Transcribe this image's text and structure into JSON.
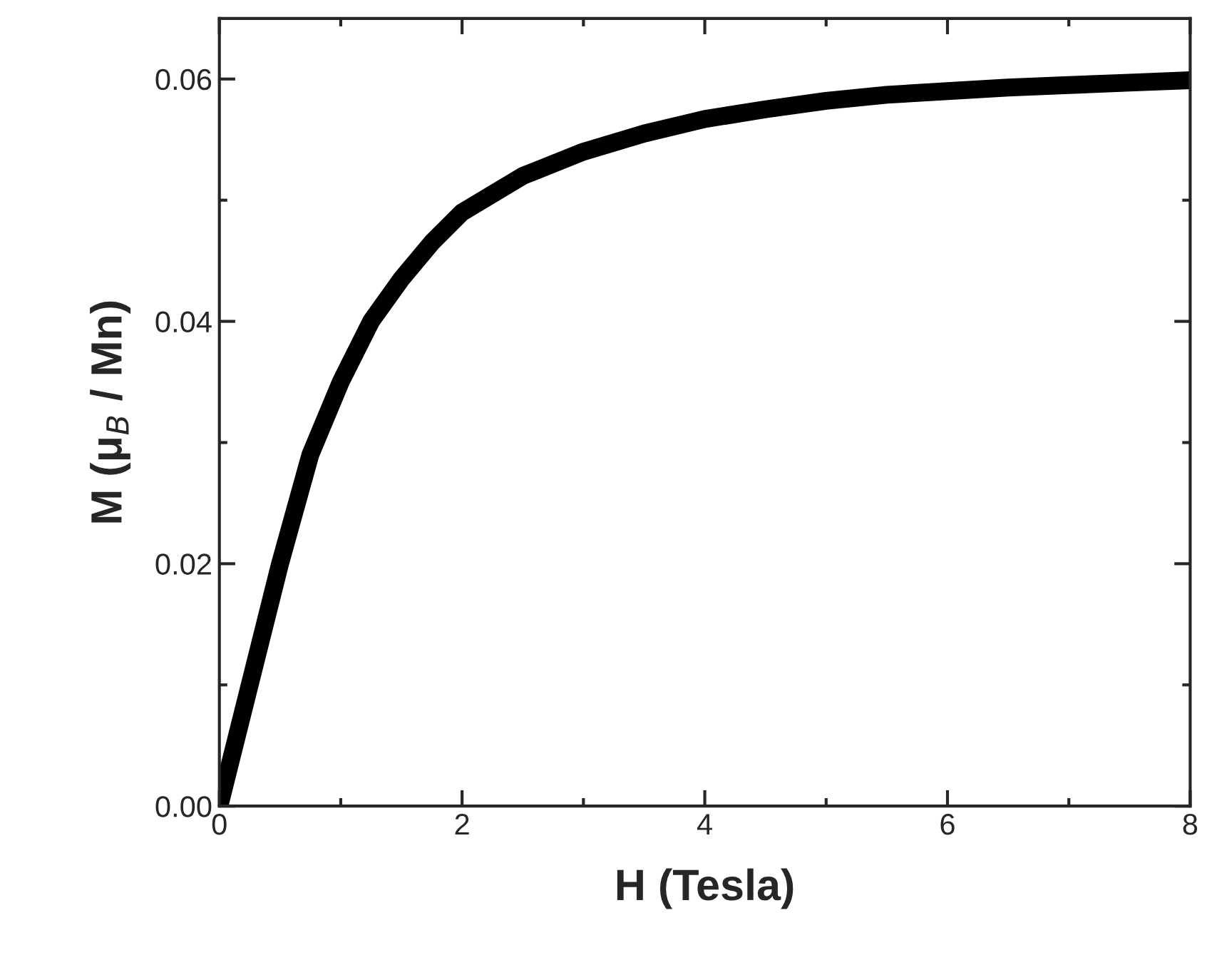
{
  "chart_data": {
    "type": "line",
    "xlabel": "H (Tesla)",
    "ylabel": "M (μ$_{B}$ / Mn)",
    "x": [
      0,
      0.1,
      0.25,
      0.5,
      0.75,
      1.0,
      1.25,
      1.5,
      1.75,
      2.0,
      2.5,
      3.0,
      3.5,
      4.0,
      4.5,
      5.0,
      5.5,
      6.0,
      6.5,
      7.0,
      7.5,
      8.0
    ],
    "series": [
      {
        "color": "#000000",
        "values": [
          0,
          0.004,
          0.01,
          0.02,
          0.029,
          0.035,
          0.04,
          0.0435,
          0.0465,
          0.049,
          0.052,
          0.054,
          0.0555,
          0.0567,
          0.0575,
          0.0582,
          0.0587,
          0.059,
          0.0593,
          0.0595,
          0.0597,
          0.0599
        ]
      }
    ],
    "xlim": [
      0,
      8
    ],
    "xticks": [
      0,
      2,
      4,
      6,
      8
    ],
    "ylim": [
      0,
      0.065
    ],
    "yticks": [
      {
        "value": 0,
        "label": "0.00"
      },
      {
        "value": 0.02,
        "label": "0.02"
      },
      {
        "value": 0.04,
        "label": "0.04"
      },
      {
        "value": 0.06,
        "label": "0.06"
      }
    ],
    "grid": false,
    "legend": false,
    "marker": "none",
    "line_style": "solid"
  }
}
